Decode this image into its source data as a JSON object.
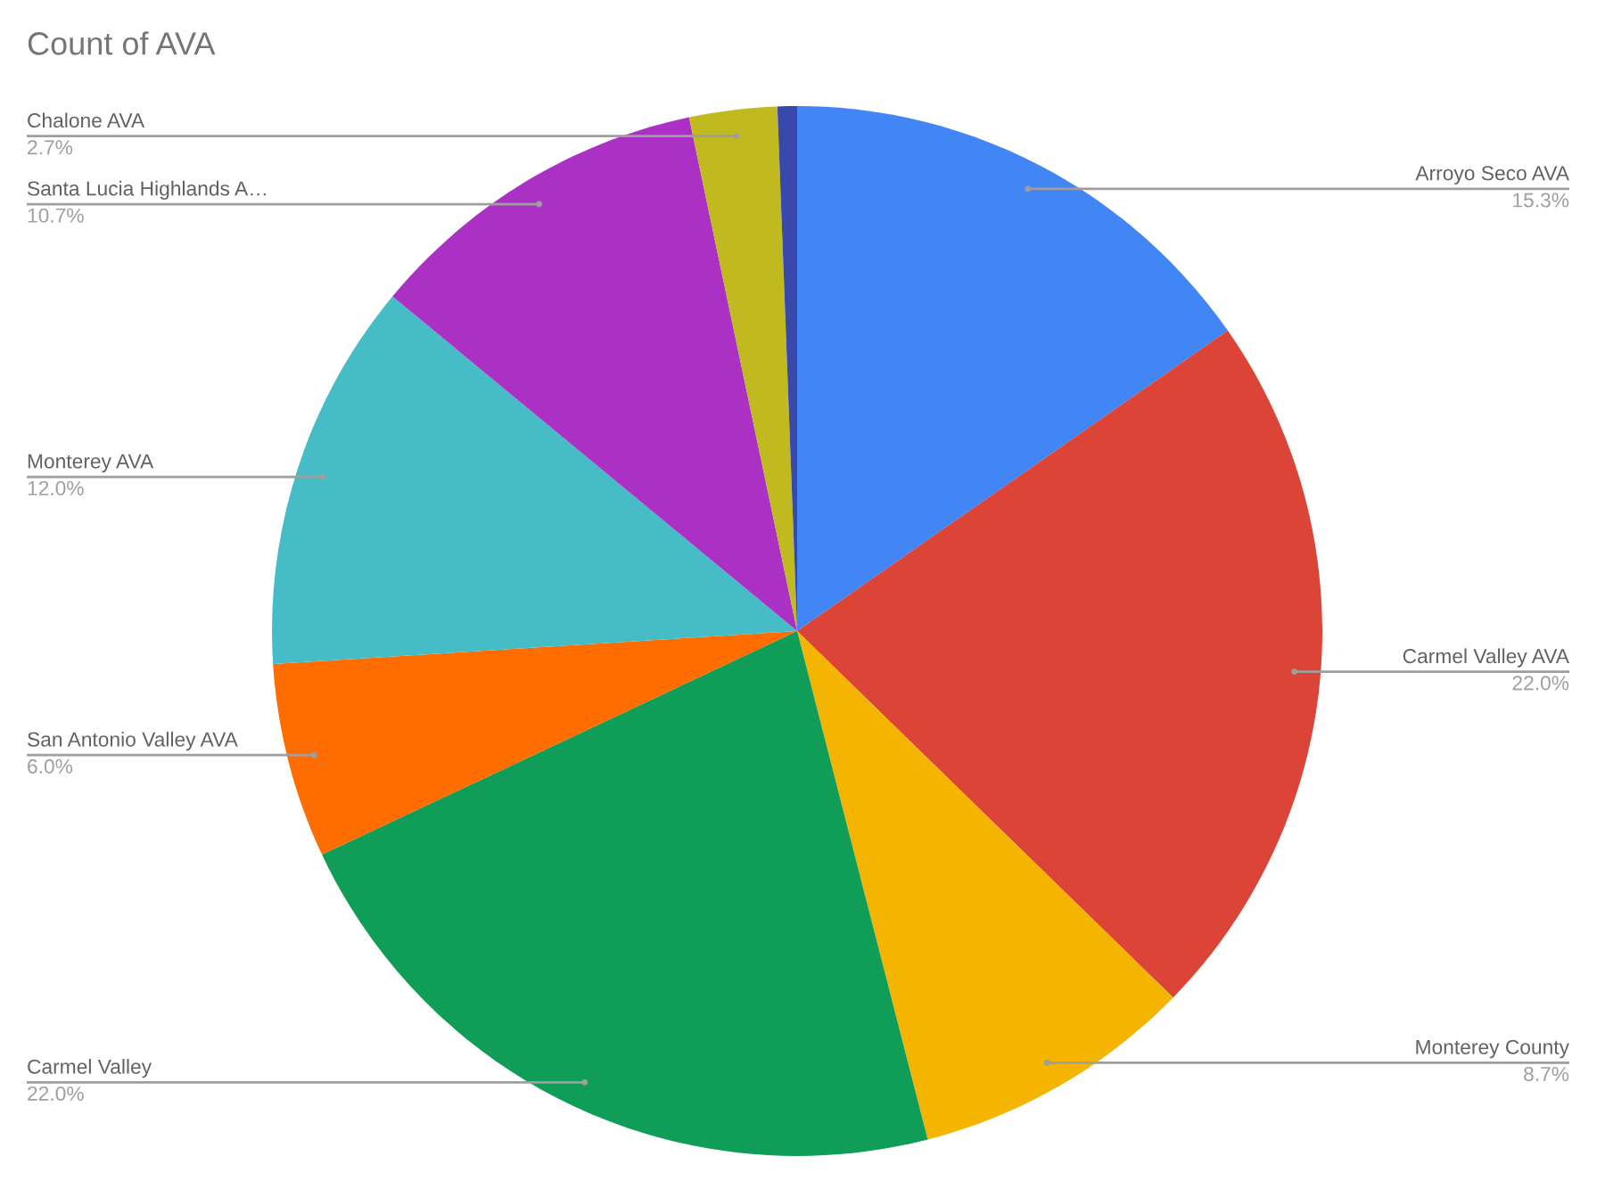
{
  "chart_data": {
    "type": "pie",
    "title": "Count of AVA",
    "categories": [
      "Arroyo Seco AVA",
      "Carmel Valley AVA",
      "Monterey County",
      "Carmel Valley",
      "San Antonio Valley AVA",
      "Monterey AVA",
      "Santa Lucia Highlands A…",
      "Chalone AVA",
      null
    ],
    "values": [
      15.3,
      22.0,
      8.7,
      22.0,
      6.0,
      12.0,
      10.7,
      2.7,
      0.6
    ],
    "value_labels": [
      "15.3%",
      "22.0%",
      "8.7%",
      "22.0%",
      "6.0%",
      "12.0%",
      "10.7%",
      "2.7%",
      null
    ],
    "colors": [
      "#4285f4",
      "#db4437",
      "#f4b400",
      "#0f9d58",
      "#ff6d01",
      "#46bdc6",
      "#ab30c4",
      "#c0b920",
      "#3949ab"
    ]
  }
}
